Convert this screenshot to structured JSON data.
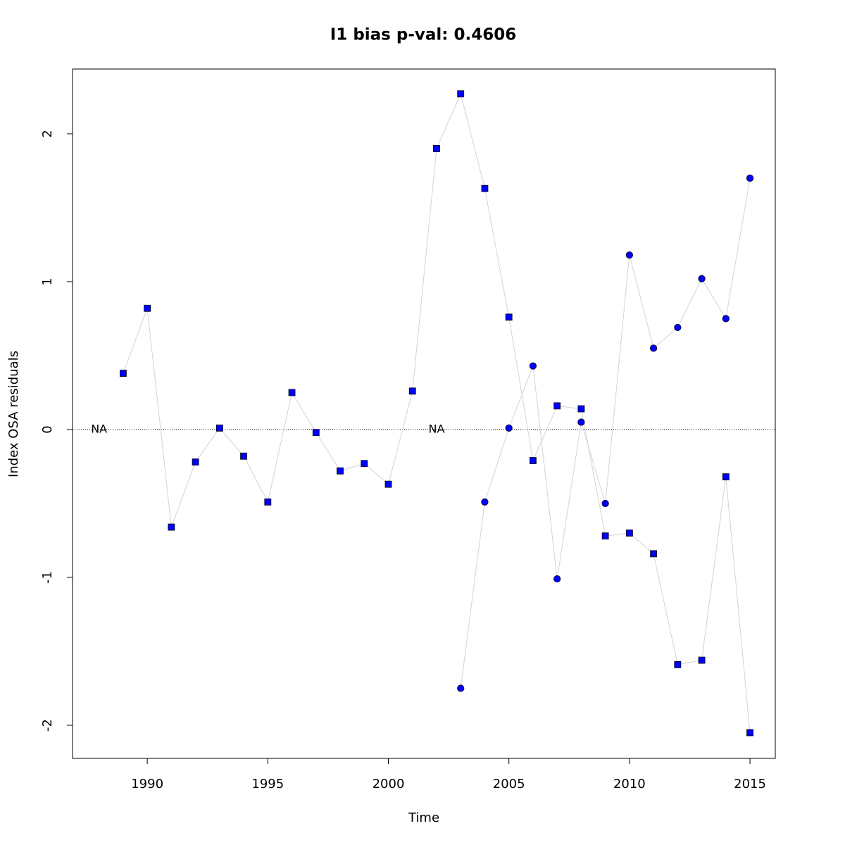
{
  "chart_data": {
    "type": "line",
    "title": "I1 bias p-val: 0.4606",
    "title_color": "#228b22",
    "xlabel": "Time",
    "ylabel": "Index OSA residuals",
    "x": [
      1989,
      1990,
      1991,
      1992,
      1993,
      1994,
      1995,
      1996,
      1997,
      1998,
      1999,
      2000,
      2001,
      2002,
      2003,
      2004,
      2005,
      2006,
      2007,
      2008,
      2009,
      2010,
      2011,
      2012,
      2013,
      2014,
      2015
    ],
    "series": [
      {
        "marker": "square",
        "color": "#0000ff",
        "line_color": "#d3d3d3",
        "values": [
          0.38,
          0.82,
          -0.66,
          -0.22,
          0.01,
          -0.18,
          -0.49,
          0.25,
          -0.02,
          -0.28,
          -0.23,
          -0.37,
          0.26,
          1.9,
          2.27,
          1.63,
          0.76,
          -0.21,
          0.16,
          0.14,
          -0.72,
          -0.7,
          -0.84,
          -1.59,
          -1.56,
          -0.32,
          -2.05
        ]
      },
      {
        "marker": "circle",
        "color": "#0000ff",
        "line_color": "#d3d3d3",
        "values": [
          null,
          null,
          null,
          null,
          null,
          null,
          null,
          null,
          null,
          null,
          null,
          null,
          null,
          null,
          -1.75,
          -0.49,
          0.01,
          0.43,
          -1.01,
          0.05,
          -0.5,
          1.18,
          0.55,
          0.69,
          1.02,
          0.75,
          1.7
        ]
      }
    ],
    "annotations": [
      {
        "x": 1988,
        "y": 0,
        "text": "NA"
      },
      {
        "x": 2002,
        "y": 0,
        "text": "NA"
      }
    ],
    "hline": 0,
    "xlim": [
      1986.9,
      2016.05
    ],
    "ylim": [
      -2.224,
      2.438
    ],
    "xticks": [
      1990,
      1995,
      2000,
      2005,
      2010,
      2015
    ],
    "yticks": [
      -2,
      -1,
      0,
      1,
      2
    ],
    "grid": false
  }
}
